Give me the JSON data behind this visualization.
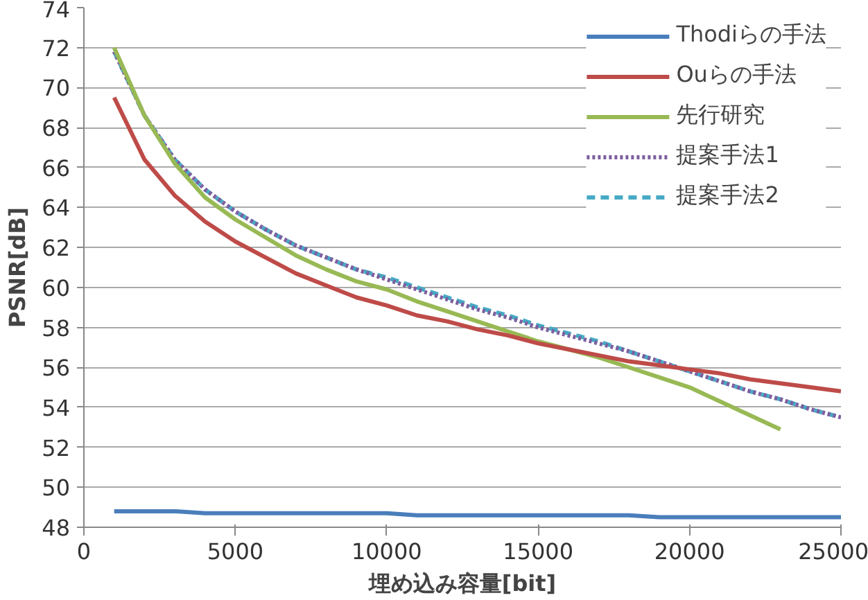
{
  "chart_data": {
    "type": "line",
    "xlabel": "埋め込み容量[bit]",
    "ylabel": "PSNR[dB]",
    "x": [
      1000,
      2000,
      3000,
      4000,
      5000,
      6000,
      7000,
      8000,
      9000,
      10000,
      11000,
      12000,
      13000,
      14000,
      15000,
      16000,
      17000,
      18000,
      19000,
      20000,
      21000,
      22000,
      23000,
      24000,
      25000
    ],
    "xlim": [
      0,
      25000
    ],
    "xticks": [
      0,
      5000,
      10000,
      15000,
      20000,
      25000
    ],
    "ylim": [
      48,
      74
    ],
    "yticks": [
      48,
      50,
      52,
      54,
      56,
      58,
      60,
      62,
      64,
      66,
      68,
      70,
      72,
      74
    ],
    "grid": "y",
    "legend": "top right",
    "series": [
      {
        "name": "Thodiらの手法",
        "color": "#4a7ebb",
        "line_style": "solid",
        "values": [
          48.8,
          48.8,
          48.8,
          48.7,
          48.7,
          48.7,
          48.7,
          48.7,
          48.7,
          48.7,
          48.6,
          48.6,
          48.6,
          48.6,
          48.6,
          48.6,
          48.6,
          48.6,
          48.5,
          48.5,
          48.5,
          48.5,
          48.5,
          48.5,
          48.5
        ]
      },
      {
        "name": "Ouらの手法",
        "color": "#be4b48",
        "line_style": "solid",
        "values": [
          69.5,
          66.4,
          64.6,
          63.3,
          62.3,
          61.5,
          60.7,
          60.1,
          59.5,
          59.1,
          58.6,
          58.3,
          57.9,
          57.6,
          57.2,
          56.9,
          56.6,
          56.3,
          56.1,
          55.9,
          55.7,
          55.4,
          55.2,
          55.0,
          54.8
        ]
      },
      {
        "name": "先行研究",
        "color": "#98b954",
        "line_style": "solid",
        "values": [
          72.0,
          68.6,
          66.2,
          64.5,
          63.4,
          62.5,
          61.6,
          60.9,
          60.3,
          59.9,
          59.3,
          58.8,
          58.3,
          57.8,
          57.3,
          56.9,
          56.5,
          56.0,
          55.5,
          55.0,
          54.3,
          53.6,
          52.9,
          null,
          null
        ]
      },
      {
        "name": "提案手法1",
        "color": "#7d5fa0",
        "line_style": "dotted",
        "values": [
          71.8,
          68.6,
          66.4,
          64.9,
          63.8,
          62.9,
          62.1,
          61.5,
          60.9,
          60.4,
          59.9,
          59.4,
          58.9,
          58.5,
          58.0,
          57.6,
          57.2,
          56.8,
          56.3,
          55.8,
          55.3,
          54.8,
          54.4,
          53.9,
          53.5
        ]
      },
      {
        "name": "提案手法2",
        "color": "#46aac5",
        "line_style": "dashed",
        "values": [
          71.8,
          68.6,
          66.4,
          64.9,
          63.8,
          62.9,
          62.1,
          61.5,
          60.9,
          60.5,
          60.0,
          59.5,
          59.0,
          58.6,
          58.1,
          57.7,
          57.3,
          56.8,
          56.3,
          55.8,
          55.3,
          54.8,
          54.4,
          53.9,
          53.5
        ]
      }
    ]
  }
}
